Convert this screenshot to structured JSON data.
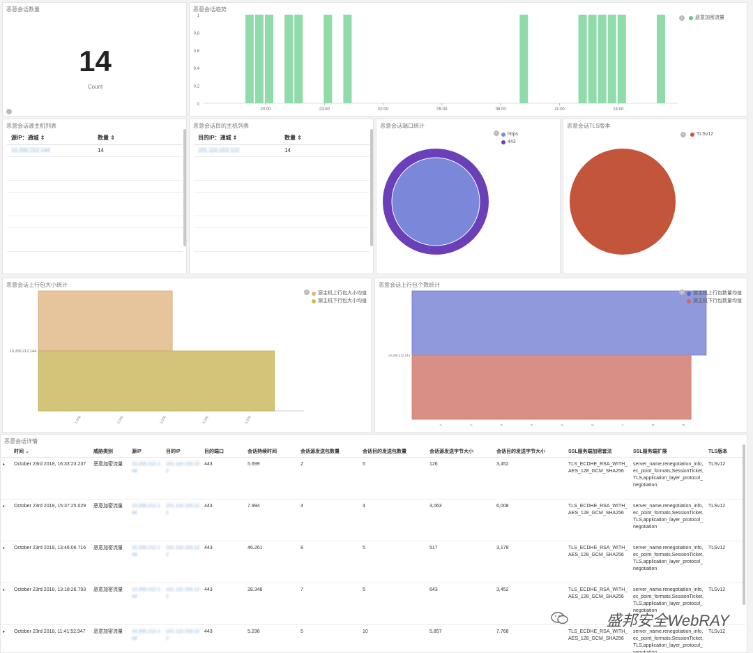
{
  "panels": {
    "count": {
      "title": "恶意会话数量",
      "value": "14",
      "label": "Count"
    },
    "trend": {
      "title": "恶意会话趋势",
      "legend": "恶意加密流量",
      "y_ticks": [
        "1",
        "0.8",
        "0.6",
        "0.4",
        "0.2",
        "0"
      ],
      "x_ticks": [
        "20:00",
        "23:00",
        "02:00",
        "05:00",
        "08:00",
        "11:00",
        "14:00"
      ],
      "color": "#8fdbaa"
    },
    "src_hosts": {
      "title": "恶意会话源主机列表",
      "col1": "源IP：通城 ⇕",
      "col2": "数量 ⇕",
      "row_ip": "10.200.212.144",
      "row_count": "14"
    },
    "dst_hosts": {
      "title": "恶意会话目的主机列表",
      "col1": "目的IP：通城 ⇕",
      "col2": "数量 ⇕",
      "row_ip": "101.110.153.122",
      "row_count": "14"
    },
    "ports": {
      "title": "恶意会话端口统计",
      "legend": [
        "https",
        "443"
      ],
      "colors": [
        "#7b87d8",
        "#6a3fb8"
      ]
    },
    "tls": {
      "title": "恶意会话TLS版本",
      "legend": [
        "TLSv12"
      ],
      "colors": [
        "#c2553a"
      ]
    },
    "pkt_size": {
      "title": "恶意会话上行包大小统计",
      "legend": [
        "源主机上行包大小均值",
        "源主机下行包大小均值"
      ],
      "colors": [
        "#e6c49c",
        "#d2c57a"
      ],
      "y_label": "10.200.212.144",
      "x_ticks": [
        "1,000",
        "2,000",
        "3,000",
        "4,000",
        "5,000"
      ]
    },
    "pkt_count": {
      "title": "恶意会话上行包个数统计",
      "legend": [
        "源主机上行包数量均值",
        "源主机下行包数量均值"
      ],
      "colors": [
        "#8f99db",
        "#d98f85"
      ],
      "y_label": "10.200.212.144",
      "x_ticks": [
        "1",
        "2",
        "3",
        "4",
        "5",
        "6",
        "7",
        "8",
        "9"
      ]
    }
  },
  "chart_data": [
    {
      "type": "bar",
      "title": "恶意会话趋势",
      "series": [
        {
          "name": "恶意加密流量",
          "values": [
            1,
            1,
            1,
            1,
            1,
            1,
            1,
            1,
            1,
            1,
            1,
            1,
            1,
            1
          ]
        }
      ],
      "x": [
        "19:00",
        "19:30",
        "20:00",
        "21:00",
        "21:30",
        "23:00",
        "00:00",
        "09:00",
        "12:00",
        "12:30",
        "13:00",
        "13:30",
        "14:00",
        "16:00"
      ],
      "ylim": [
        0,
        1
      ]
    },
    {
      "type": "pie",
      "title": "恶意会话端口统计",
      "categories": [
        "https",
        "443"
      ],
      "values": [
        14,
        14
      ]
    },
    {
      "type": "pie",
      "title": "恶意会话TLS版本",
      "categories": [
        "TLSv12"
      ],
      "values": [
        14
      ]
    },
    {
      "type": "bar",
      "title": "恶意会话上行包大小统计",
      "categories": [
        "10.200.212.144"
      ],
      "series": [
        {
          "name": "源主机上行包大小均值",
          "values": [
            3150
          ]
        },
        {
          "name": "源主机下行包大小均值",
          "values": [
            5550
          ]
        }
      ],
      "xlim": [
        0,
        6000
      ]
    },
    {
      "type": "bar",
      "title": "恶意会话上行包个数统计",
      "categories": [
        "10.200.212.144"
      ],
      "series": [
        {
          "name": "源主机上行包数量均值",
          "values": [
            9.7
          ]
        },
        {
          "name": "源主机下行包数量均值",
          "values": [
            9.2
          ]
        }
      ],
      "xlim": [
        0,
        10
      ]
    }
  ],
  "detail": {
    "title": "恶意会话详情",
    "columns": [
      "时间 ⌄",
      "威胁类别",
      "源IP",
      "目的IP",
      "目的端口",
      "会话持续时间",
      "会话源发送包数量",
      "会话目的发送包数量",
      "会话源发送字节大小",
      "会话目的发送字节大小",
      "SSL服务端加密套法",
      "SSL服务端扩展",
      "TLS版本"
    ],
    "rows": [
      [
        "October 23rd 2018, 16:33:23.237",
        "恶意加密流量",
        "10.200.212.144",
        "101.110.153.122",
        "443",
        "5.699",
        "2",
        "5",
        "126",
        "3,452",
        "TLS_ECDHE_RSA_WITH_AES_128_GCM_SHA256",
        "server_name,renegotiation_info,ec_point_formats,SessionTicket,TLS,application_layer_protocol_negotiation",
        "TLSv12"
      ],
      [
        "October 23rd 2018, 15:37:25.029",
        "恶意加密流量",
        "10.200.212.144",
        "101.110.153.122",
        "443",
        "7.994",
        "4",
        "4",
        "3,063",
        "6,008",
        "TLS_ECDHE_RSA_WITH_AES_128_GCM_SHA256",
        "server_name,renegotiation_info,ec_point_formats,SessionTicket,TLS,application_layer_protocol_negotiation",
        "TLSv12"
      ],
      [
        "October 23rd 2018, 13:46:06.716",
        "恶意加密流量",
        "10.200.212.144",
        "101.110.153.122",
        "443",
        "46.261",
        "8",
        "5",
        "517",
        "3,178",
        "TLS_ECDHE_RSA_WITH_AES_128_GCM_SHA256",
        "server_name,renegotiation_info,ec_point_formats,SessionTicket,TLS,application_layer_protocol_negotiation",
        "TLSv12"
      ],
      [
        "October 23rd 2018, 13:18:26.793",
        "恶意加密流量",
        "10.200.212.144",
        "101.110.153.122",
        "443",
        "28.348",
        "7",
        "5",
        "643",
        "3,452",
        "TLS_ECDHE_RSA_WITH_AES_128_GCM_SHA256",
        "server_name,renegotiation_info,ec_point_formats,SessionTicket,TLS,application_layer_protocol_negotiation",
        "TLSv12"
      ],
      [
        "October 23rd 2018, 11:41:52.947",
        "恶意加密流量",
        "10.200.212.144",
        "101.110.153.122",
        "443",
        "5.236",
        "5",
        "10",
        "5,857",
        "7,768",
        "TLS_ECDHE_RSA_WITH_AES_128_GCM_SHA256",
        "server_name,renegotiation_info,ec_point_formats,SessionTicket,TLS,application_layer_protocol_negotiation",
        "TLSv12"
      ]
    ]
  },
  "watermark": "盛邦安全WebRAY"
}
